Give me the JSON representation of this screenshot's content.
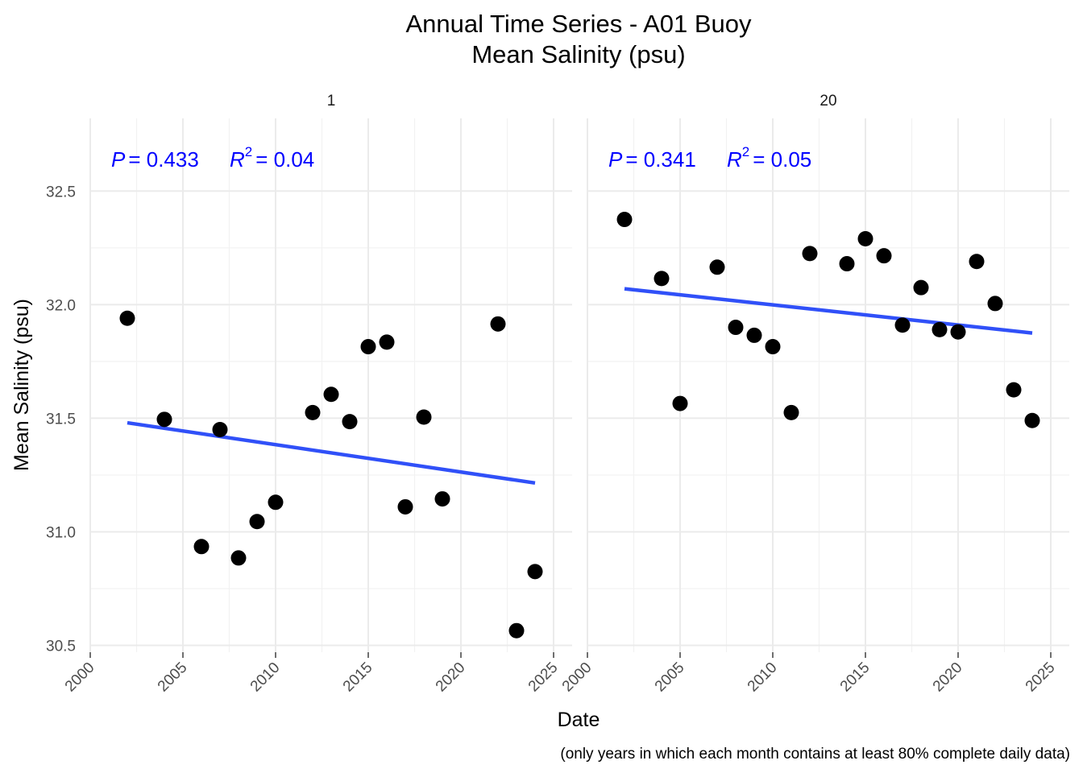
{
  "chart_data": {
    "type": "scatter",
    "title": "Annual Time Series - A01 Buoy",
    "subtitle": "Mean Salinity (psu)",
    "xlabel": "Date",
    "ylabel": "Mean Salinity (psu)",
    "caption": "(only years in which each month contains at least 80% complete daily data)",
    "xlim": [
      2000,
      2026
    ],
    "ylim": [
      30.47,
      32.82
    ],
    "x_ticks": [
      2000,
      2005,
      2010,
      2015,
      2020,
      2025
    ],
    "x_tick_labels": [
      "2000",
      "2005",
      "2010",
      "2015",
      "2020",
      "2025"
    ],
    "y_ticks": [
      30.5,
      31.0,
      31.5,
      32.0,
      32.5
    ],
    "y_tick_labels": [
      "30.5",
      "31.0",
      "31.5",
      "32.0",
      "32.5"
    ],
    "grid": true,
    "legend": "none",
    "point_color": "#000000",
    "trend_color": "#3050f8",
    "annotation_color": "#0000ff",
    "panels": [
      {
        "strip": "1",
        "annotation": {
          "p_label": "P",
          "p_value": "= 0.433",
          "r_label": "R",
          "r_sup": "2",
          "r_value": "= 0.04"
        },
        "points": [
          {
            "x": 2002,
            "y": 31.94
          },
          {
            "x": 2004,
            "y": 31.495
          },
          {
            "x": 2006,
            "y": 30.935
          },
          {
            "x": 2007,
            "y": 31.45
          },
          {
            "x": 2008,
            "y": 30.885
          },
          {
            "x": 2009,
            "y": 31.045
          },
          {
            "x": 2010,
            "y": 31.13
          },
          {
            "x": 2012,
            "y": 31.525
          },
          {
            "x": 2013,
            "y": 31.605
          },
          {
            "x": 2014,
            "y": 31.485
          },
          {
            "x": 2015,
            "y": 31.815
          },
          {
            "x": 2016,
            "y": 31.835
          },
          {
            "x": 2017,
            "y": 31.11
          },
          {
            "x": 2018,
            "y": 31.505
          },
          {
            "x": 2019,
            "y": 31.145
          },
          {
            "x": 2022,
            "y": 31.915
          },
          {
            "x": 2023,
            "y": 30.565
          },
          {
            "x": 2024,
            "y": 30.825
          }
        ],
        "trend": {
          "x": [
            2002,
            2024
          ],
          "y": [
            31.48,
            31.215
          ]
        }
      },
      {
        "strip": "20",
        "annotation": {
          "p_label": "P",
          "p_value": "= 0.341",
          "r_label": "R",
          "r_sup": "2",
          "r_value": "= 0.05"
        },
        "points": [
          {
            "x": 2002,
            "y": 32.375
          },
          {
            "x": 2004,
            "y": 32.115
          },
          {
            "x": 2005,
            "y": 31.565
          },
          {
            "x": 2007,
            "y": 32.165
          },
          {
            "x": 2008,
            "y": 31.9
          },
          {
            "x": 2009,
            "y": 31.865
          },
          {
            "x": 2010,
            "y": 31.815
          },
          {
            "x": 2011,
            "y": 31.525
          },
          {
            "x": 2012,
            "y": 32.225
          },
          {
            "x": 2014,
            "y": 32.18
          },
          {
            "x": 2015,
            "y": 32.29
          },
          {
            "x": 2016,
            "y": 32.215
          },
          {
            "x": 2017,
            "y": 31.91
          },
          {
            "x": 2018,
            "y": 32.075
          },
          {
            "x": 2019,
            "y": 31.89
          },
          {
            "x": 2020,
            "y": 31.88
          },
          {
            "x": 2021,
            "y": 32.19
          },
          {
            "x": 2022,
            "y": 32.005
          },
          {
            "x": 2023,
            "y": 31.625
          },
          {
            "x": 2024,
            "y": 31.49
          }
        ],
        "trend": {
          "x": [
            2002,
            2024
          ],
          "y": [
            32.07,
            31.875
          ]
        }
      }
    ]
  }
}
